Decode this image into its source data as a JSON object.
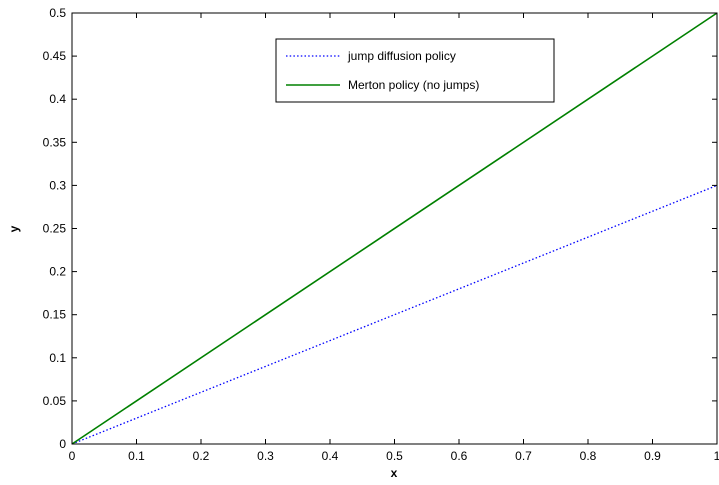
{
  "chart_data": {
    "type": "line",
    "title": "",
    "xlabel": "x",
    "ylabel": "y",
    "xlim": [
      0,
      1
    ],
    "ylim": [
      0,
      0.5
    ],
    "x_ticks": [
      0,
      0.1,
      0.2,
      0.3,
      0.4,
      0.5,
      0.6,
      0.7,
      0.8,
      0.9,
      1
    ],
    "x_tick_labels": [
      "0",
      "0.1",
      "0.2",
      "0.3",
      "0.4",
      "0.5",
      "0.6",
      "0.7",
      "0.8",
      "0.9",
      "1"
    ],
    "y_ticks": [
      0,
      0.05,
      0.1,
      0.15,
      0.2,
      0.25,
      0.3,
      0.35,
      0.4,
      0.45,
      0.5
    ],
    "y_tick_labels": [
      "0",
      "0.05",
      "0.1",
      "0.15",
      "0.2",
      "0.25",
      "0.3",
      "0.35",
      "0.4",
      "0.45",
      "0.5"
    ],
    "grid": false,
    "legend_position": "top-center",
    "series": [
      {
        "name": "jump diffusion policy",
        "color": "#0000ff",
        "line_style": "dotted",
        "x": [
          0,
          1
        ],
        "y": [
          0,
          0.3
        ]
      },
      {
        "name": "Merton policy (no jumps)",
        "color": "#008000",
        "line_style": "solid",
        "x": [
          0,
          1
        ],
        "y": [
          0,
          0.5
        ]
      }
    ]
  }
}
